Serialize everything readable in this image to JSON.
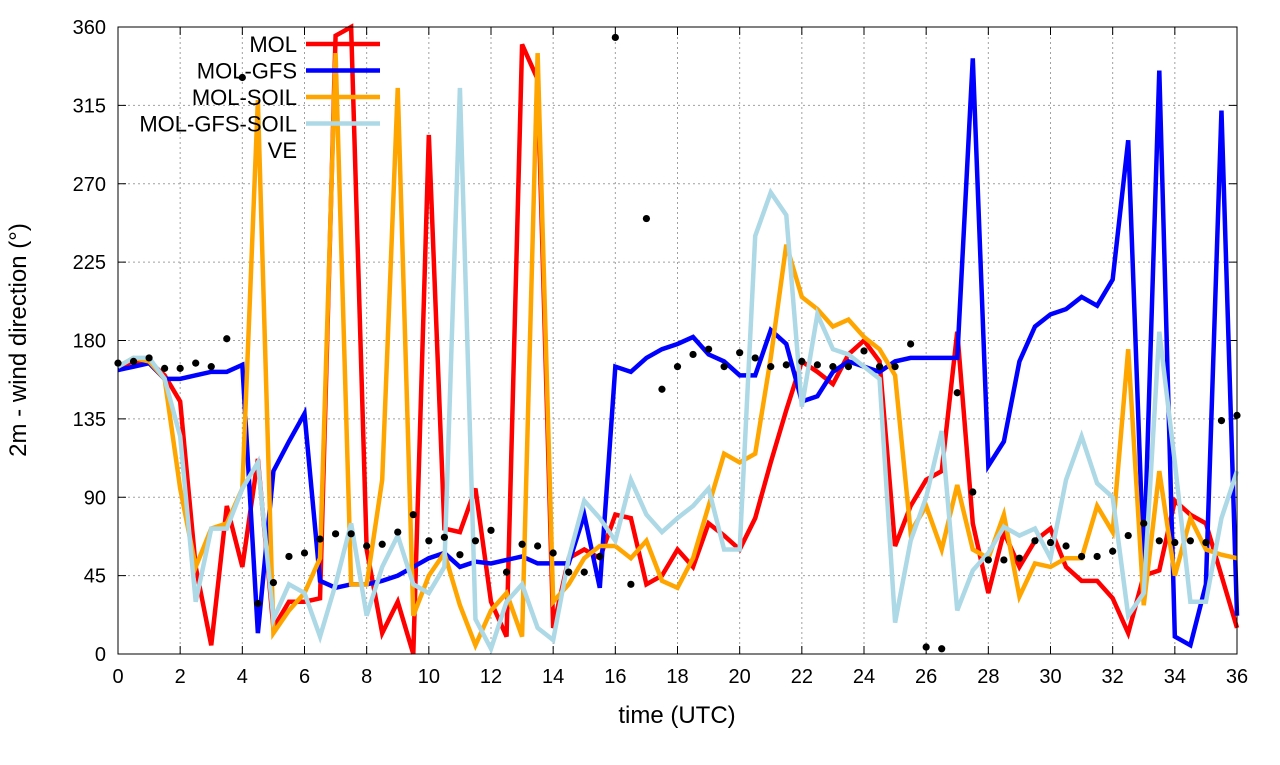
{
  "chart_data": {
    "type": "line",
    "title": "",
    "xlabel": "time (UTC)",
    "ylabel": "2m - wind direction (°)",
    "xlim": [
      0,
      36
    ],
    "ylim": [
      0,
      360
    ],
    "xticks": [
      0,
      2,
      4,
      6,
      8,
      10,
      12,
      14,
      16,
      18,
      20,
      22,
      24,
      26,
      28,
      30,
      32,
      34,
      36
    ],
    "yticks": [
      0,
      45,
      90,
      135,
      180,
      225,
      270,
      315,
      360
    ],
    "grid": true,
    "legend_position": "top-left",
    "x_step": 0.5,
    "series": [
      {
        "name": "MOL",
        "color": "#ff0000",
        "style": "line",
        "values": [
          165,
          168,
          168,
          160,
          145,
          50,
          5,
          85,
          50,
          112,
          15,
          30,
          30,
          32,
          355,
          360,
          60,
          12,
          30,
          0,
          298,
          72,
          70,
          95,
          30,
          10,
          350,
          330,
          15,
          55,
          60,
          55,
          80,
          78,
          40,
          45,
          60,
          50,
          75,
          68,
          60,
          78,
          110,
          140,
          168,
          162,
          155,
          172,
          180,
          168,
          62,
          85,
          100,
          105,
          185,
          75,
          35,
          70,
          50,
          65,
          72,
          50,
          42,
          42,
          32,
          12,
          45,
          48,
          88,
          80,
          75,
          45,
          15
        ]
      },
      {
        "name": "MOL-GFS",
        "color": "#0000ff",
        "style": "line",
        "values": [
          163,
          165,
          167,
          158,
          158,
          160,
          162,
          162,
          166,
          12,
          105,
          122,
          138,
          42,
          38,
          40,
          40,
          42,
          45,
          50,
          55,
          58,
          50,
          53,
          52,
          54,
          56,
          52,
          52,
          52,
          80,
          38,
          165,
          162,
          170,
          175,
          178,
          182,
          172,
          168,
          160,
          160,
          186,
          178,
          145,
          148,
          162,
          168,
          165,
          162,
          168,
          170,
          170,
          170,
          170,
          342,
          108,
          122,
          168,
          188,
          195,
          198,
          205,
          200,
          215,
          295,
          50,
          335,
          10,
          5,
          40,
          312,
          22
        ]
      },
      {
        "name": "MOL-SOIL",
        "color": "#ffa500",
        "style": "line",
        "values": [
          165,
          170,
          168,
          158,
          95,
          50,
          72,
          75,
          95,
          318,
          12,
          25,
          35,
          55,
          345,
          40,
          40,
          100,
          325,
          22,
          45,
          58,
          28,
          5,
          25,
          35,
          10,
          345,
          30,
          40,
          55,
          62,
          62,
          55,
          65,
          42,
          38,
          55,
          85,
          115,
          110,
          115,
          170,
          235,
          205,
          198,
          188,
          192,
          182,
          175,
          160,
          70,
          85,
          60,
          97,
          60,
          55,
          80,
          33,
          52,
          50,
          55,
          55,
          85,
          70,
          175,
          28,
          105,
          45,
          78,
          60,
          57,
          55
        ]
      },
      {
        "name": "MOL-GFS-SOIL",
        "color": "#add8e6",
        "style": "line",
        "values": [
          165,
          170,
          170,
          158,
          125,
          30,
          72,
          72,
          95,
          110,
          20,
          40,
          35,
          10,
          40,
          75,
          22,
          50,
          68,
          40,
          35,
          50,
          325,
          20,
          3,
          30,
          40,
          15,
          8,
          55,
          88,
          78,
          65,
          100,
          80,
          70,
          78,
          85,
          95,
          60,
          60,
          240,
          265,
          252,
          142,
          195,
          175,
          172,
          165,
          158,
          18,
          65,
          90,
          128,
          25,
          48,
          58,
          73,
          68,
          72,
          55,
          100,
          125,
          98,
          90,
          22,
          35,
          185,
          110,
          30,
          30,
          78,
          105
        ]
      },
      {
        "name": "VE",
        "color": "#000000",
        "style": "points",
        "values": [
          167,
          168,
          170,
          164,
          164,
          167,
          165,
          181,
          331,
          29,
          41,
          56,
          58,
          66,
          69,
          69,
          62,
          63,
          70,
          80,
          65,
          67,
          57,
          65,
          71,
          47,
          63,
          62,
          58,
          47,
          47,
          56,
          354,
          40,
          250,
          152,
          165,
          172,
          175,
          165,
          173,
          170,
          165,
          166,
          168,
          166,
          165,
          165,
          174,
          165,
          165,
          178,
          4,
          3,
          150,
          93,
          54,
          54,
          55,
          65,
          64,
          62,
          56,
          56,
          59,
          68,
          75,
          65,
          64,
          65,
          64,
          134,
          137
        ]
      }
    ]
  }
}
